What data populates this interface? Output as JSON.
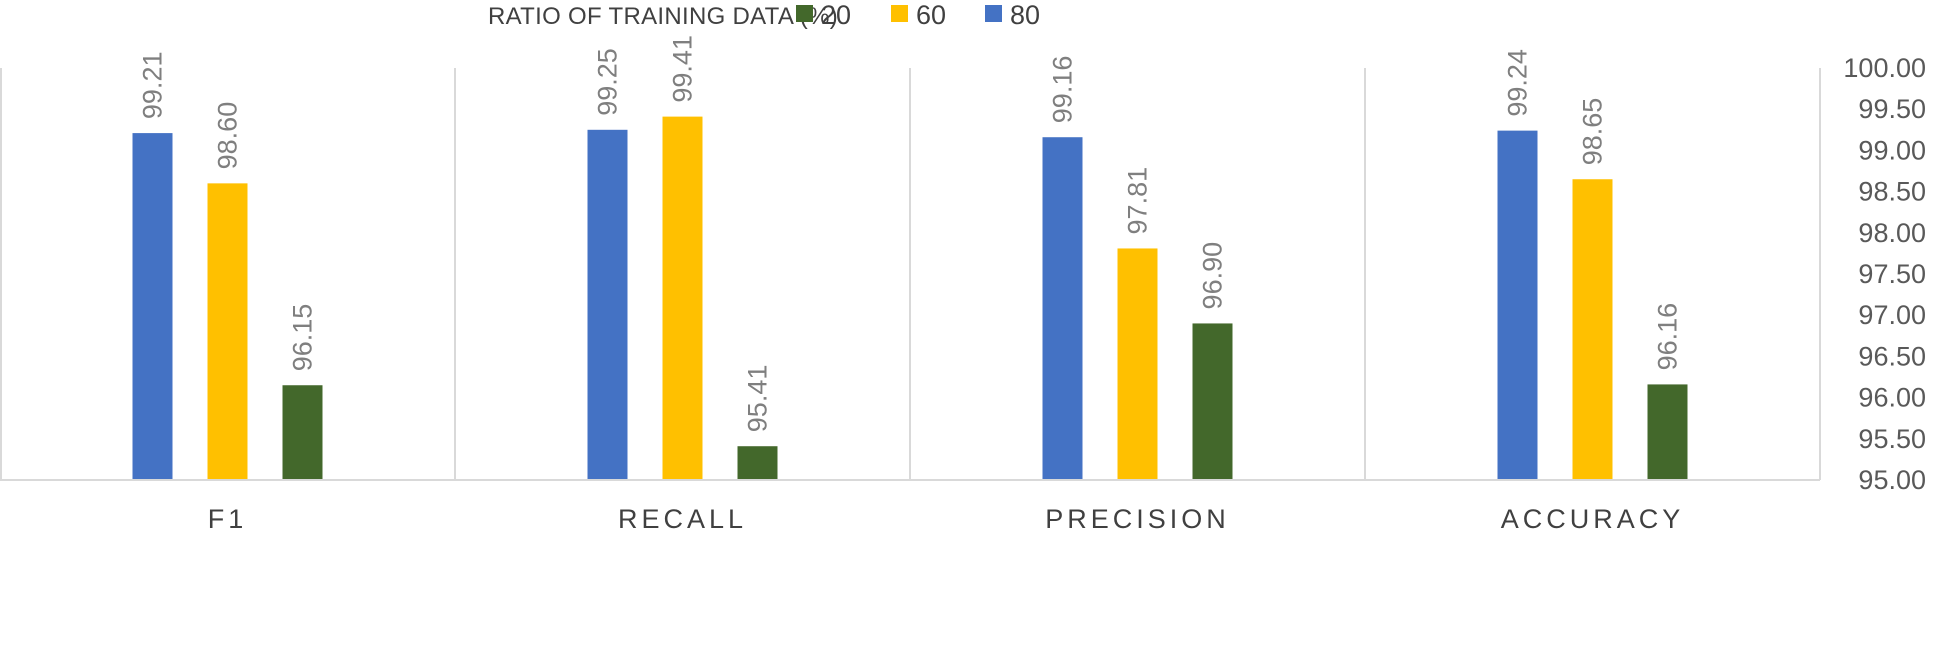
{
  "chart_data": {
    "type": "bar",
    "title": "",
    "legend_title": "RATIO OF TRAINING DATA (%)",
    "legend_position": "top",
    "categories": [
      "F1",
      "RECALL",
      "PRECISION",
      "ACCURACY"
    ],
    "series": [
      {
        "name": "80",
        "color": "#4472c4",
        "values": [
          99.21,
          99.25,
          99.16,
          99.24
        ],
        "labels": [
          "99.21",
          "99.25",
          "99.16",
          "99.24"
        ]
      },
      {
        "name": "60",
        "color": "#ffc000",
        "values": [
          98.6,
          99.41,
          97.81,
          98.65
        ],
        "labels": [
          "98.60",
          "99.41",
          "97.81",
          "98.65"
        ]
      },
      {
        "name": "20",
        "color": "#43682b",
        "values": [
          96.15,
          95.41,
          96.9,
          96.16
        ],
        "labels": [
          "96.15",
          "95.41",
          "96.90",
          "96.16"
        ]
      }
    ],
    "legend_order": [
      "20",
      "60",
      "80"
    ],
    "ylim": [
      95.0,
      100.0
    ],
    "yticks": [
      "95.00",
      "95.50",
      "96.00",
      "96.50",
      "97.00",
      "97.50",
      "98.00",
      "98.50",
      "99.00",
      "99.50",
      "100.00"
    ],
    "y_axis_side": "right",
    "xlabel": "",
    "ylabel": ""
  }
}
